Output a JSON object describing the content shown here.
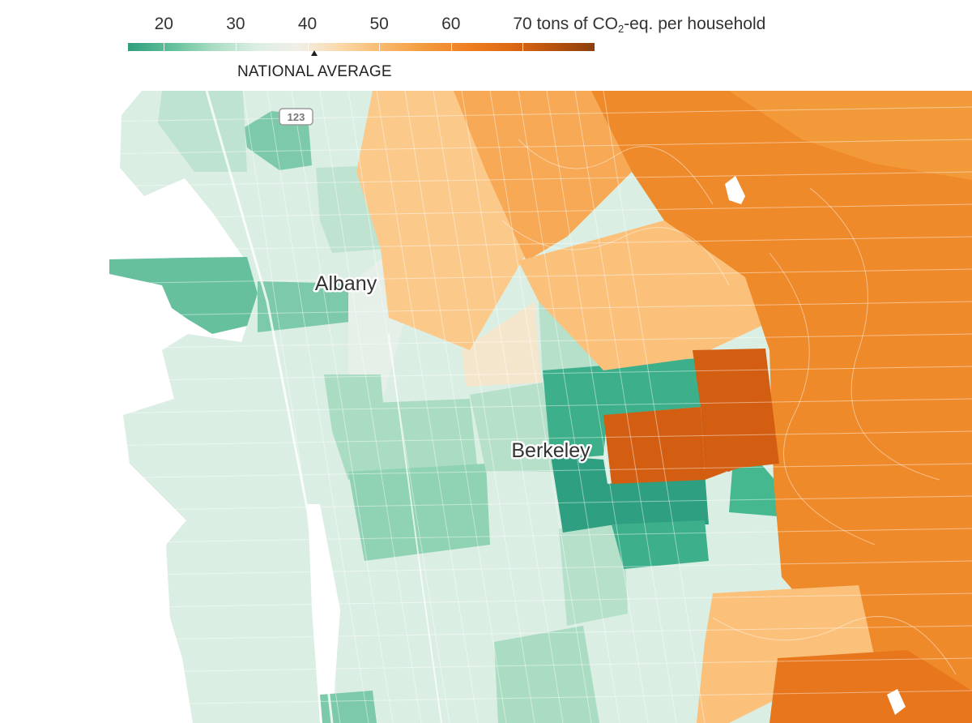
{
  "legend": {
    "ticks": [
      {
        "value": 20,
        "label": "20"
      },
      {
        "value": 30,
        "label": "30"
      },
      {
        "value": 40,
        "label": "40"
      },
      {
        "value": 50,
        "label": "50"
      },
      {
        "value": 60,
        "label": "60"
      },
      {
        "value": 70,
        "label": "70"
      }
    ],
    "unit_prefix": "tons of CO",
    "unit_subscript": "2",
    "unit_suffix": "-eq. per household",
    "domain": [
      15,
      80
    ],
    "national_average_label": "NATIONAL AVERAGE",
    "national_average_value": 41,
    "colors": [
      "#2f9e7f",
      "#5fbf98",
      "#a9dcc2",
      "#dbeee3",
      "#f1efe8",
      "#fbd9a9",
      "#f9b96b",
      "#f39a3e",
      "#ef7f22",
      "#de6a14",
      "#b8520e",
      "#8c3f0b"
    ]
  },
  "map": {
    "places": [
      {
        "name": "Albany"
      },
      {
        "name": "Berkeley"
      }
    ],
    "highway_shield": "123"
  }
}
